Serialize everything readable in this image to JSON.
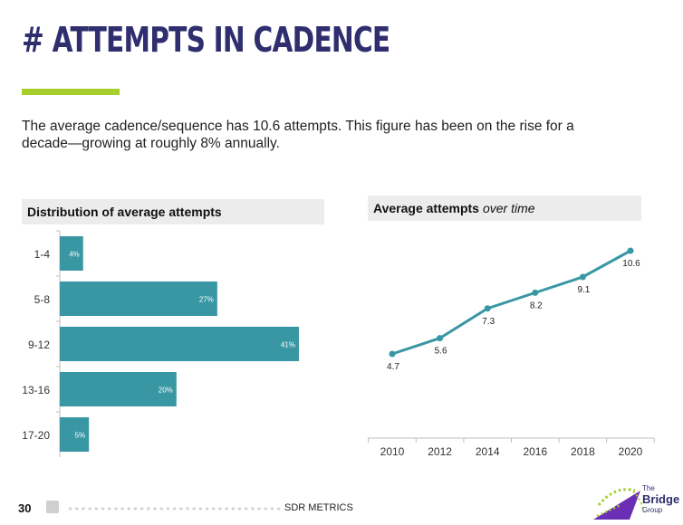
{
  "page": {
    "title": "# ATTEMPTS IN CADENCE",
    "intro": "The average cadence/sequence has 10.6 attempts. This figure has been on the rise for a decade—growing at roughly 8% annually.",
    "accent_color": "#a6cf2c",
    "title_color": "#2f2e6e",
    "series_color": "#3897a3"
  },
  "left_panel": {
    "header": "Distribution of average attempts"
  },
  "right_panel": {
    "header_bold": "Average attempts",
    "header_italic": "over time"
  },
  "chart_data": [
    {
      "type": "bar",
      "orientation": "horizontal",
      "title": "Distribution of average attempts",
      "categories": [
        "1-4",
        "5-8",
        "9-12",
        "13-16",
        "17-20"
      ],
      "values": [
        4,
        27,
        41,
        20,
        5
      ],
      "labels": [
        "4%",
        "27%",
        "41%",
        "20%",
        "5%"
      ],
      "unit": "%",
      "xlim": [
        0,
        41
      ]
    },
    {
      "type": "line",
      "title": "Average attempts over time",
      "x": [
        2010,
        2012,
        2014,
        2016,
        2018,
        2020
      ],
      "values": [
        4.7,
        5.6,
        7.3,
        8.2,
        9.1,
        10.6
      ],
      "labels": [
        "4.7",
        "5.6",
        "7.3",
        "8.2",
        "9.1",
        "10.6"
      ],
      "tick_labels": [
        "2010",
        "2012",
        "2014",
        "2016",
        "2018",
        "2020"
      ],
      "ylim": [
        4.7,
        10.6
      ]
    }
  ],
  "footer": {
    "page_number": "30",
    "section": "SDR METRICS",
    "logo": {
      "line1": "The",
      "line2": "Bridge",
      "line3": "Group"
    }
  }
}
